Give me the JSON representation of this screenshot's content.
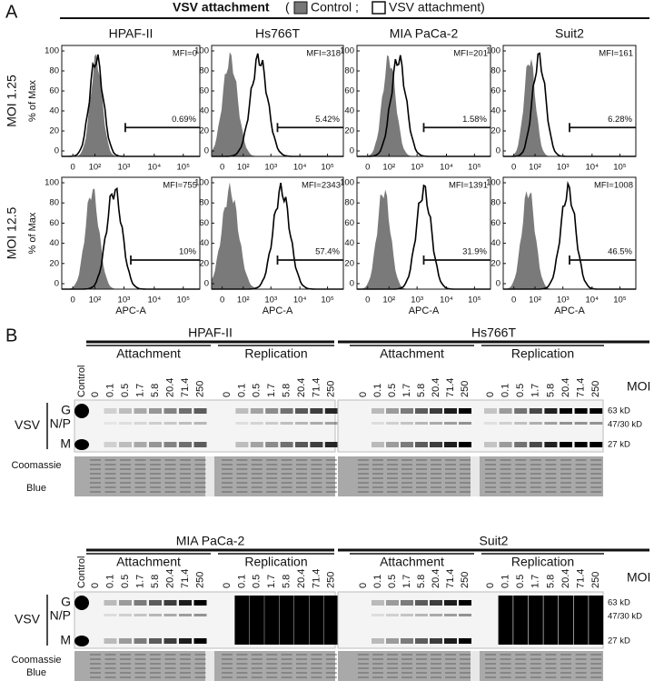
{
  "panel_a": {
    "label": "A",
    "title": "VSV attachment",
    "legend": [
      "(",
      "Control ;",
      "VSV attachment)"
    ],
    "columns": [
      "HPAF-II",
      "Hs766T",
      "MIA PaCa-2",
      "Suit2"
    ],
    "rows": [
      {
        "label": "MOI 1.25",
        "y_label": "% of Max",
        "cells": [
          {
            "mfi": "MFI=0",
            "pct": "0.69%"
          },
          {
            "mfi": "MFI=318",
            "pct": "5.42%"
          },
          {
            "mfi": "MFI=201",
            "pct": "1.58%"
          },
          {
            "mfi": "MFI=161",
            "pct": "6.28%"
          }
        ]
      },
      {
        "label": "MOI 12.5",
        "y_label": "% of Max",
        "cells": [
          {
            "mfi": "MFI=755",
            "pct": "10%"
          },
          {
            "mfi": "MFI=2343",
            "pct": "57.4%"
          },
          {
            "mfi": "MFI=1391",
            "pct": "31.9%"
          },
          {
            "mfi": "MFI=1008",
            "pct": "46.5%"
          }
        ]
      }
    ],
    "yticks": [
      "100",
      "80",
      "60",
      "40",
      "20",
      "0"
    ],
    "xticks": [
      "0",
      "10²",
      "10³",
      "10⁴",
      "10⁵"
    ],
    "x_label": "APC-A"
  },
  "panel_b": {
    "label": "B",
    "control": "Control",
    "moi_values": [
      "0",
      "0.1",
      "0.5",
      "1.7",
      "5.8",
      "20.4",
      "71.4",
      "250"
    ],
    "moi_label": "MOI",
    "vsv": "VSV",
    "bands": [
      "G",
      "N/P",
      "M"
    ],
    "markers": [
      "63 kD",
      "47/30 kD",
      "27 kD"
    ],
    "stain": [
      "Coomassie",
      "Blue"
    ],
    "blots": [
      {
        "groups": [
          {
            "name": "HPAF-II",
            "sections": [
              "Attachment",
              "Replication"
            ]
          },
          {
            "name": "Hs766T",
            "sections": [
              "Attachment",
              "Replication"
            ]
          }
        ]
      },
      {
        "groups": [
          {
            "name": "MIA PaCa-2",
            "sections": [
              "Attachment",
              "Replication"
            ]
          },
          {
            "name": "Suit2",
            "sections": [
              "Attachment",
              "Replication"
            ]
          }
        ]
      }
    ]
  }
}
